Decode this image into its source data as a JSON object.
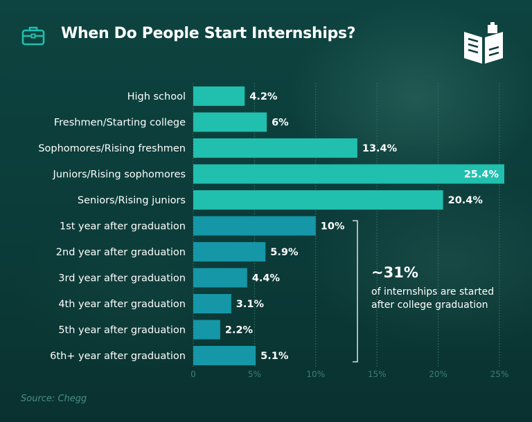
{
  "title": "When Do People Start Internships?",
  "source": "Source: Chegg",
  "callout": {
    "value": "~31%",
    "text": "of internships are started after college graduation"
  },
  "colors": {
    "pre_graduation_bar": "#20bfae",
    "post_graduation_bar": "#1597a7",
    "tick_text": "#3f7d77"
  },
  "icons": [
    "briefcase-icon",
    "book-logo-icon"
  ],
  "chart_data": {
    "type": "bar",
    "orientation": "horizontal",
    "categories": [
      "High school",
      "Freshmen/Starting college",
      "Sophomores/Rising freshmen",
      "Juniors/Rising sophomores",
      "Seniors/Rising juniors",
      "1st year after graduation",
      "2nd year after graduation",
      "3rd year after graduation",
      "4th year after graduation",
      "5th year after graduation",
      "6th+ year after graduation"
    ],
    "values": [
      4.2,
      6,
      13.4,
      25.4,
      20.4,
      10,
      5.9,
      4.4,
      3.1,
      2.2,
      5.1
    ],
    "value_labels": [
      "4.2%",
      "6%",
      "13.4%",
      "25.4%",
      "20.4%",
      "10%",
      "5.9%",
      "4.4%",
      "3.1%",
      "2.2%",
      "5.1%"
    ],
    "xticks": [
      0,
      5,
      10,
      15,
      20,
      25
    ],
    "xtick_labels": [
      "0",
      "5%",
      "10%",
      "15%",
      "20%",
      "25%"
    ],
    "xlim": [
      0,
      25.4
    ],
    "grid": "vertical dashed",
    "title": "When Do People Start Internships?",
    "xlabel": "",
    "ylabel": ""
  }
}
